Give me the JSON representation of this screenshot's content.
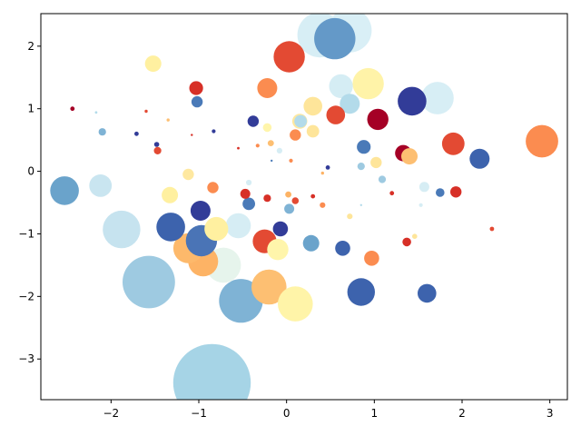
{
  "chart_data": {
    "type": "scatter",
    "title": "",
    "xlabel": "",
    "ylabel": "",
    "xlim": [
      -2.8,
      3.2
    ],
    "ylim": [
      -3.65,
      2.52
    ],
    "x_ticks": [
      -2,
      -1,
      0,
      1,
      2,
      3
    ],
    "y_ticks": [
      -3,
      -2,
      -1,
      0,
      1,
      2
    ],
    "x_tick_labels": [
      "−2",
      "−1",
      "0",
      "1",
      "2",
      "3"
    ],
    "y_tick_labels": [
      "−3",
      "−2",
      "−1",
      "0",
      "1",
      "2"
    ],
    "grid": false,
    "legend": "none",
    "colormap": "RdYlBu",
    "points": [
      {
        "x": -0.85,
        "y": -3.38,
        "size": 0.62,
        "color": "#a6d4e6"
      },
      {
        "x": -1.57,
        "y": -1.77,
        "size": 0.42,
        "color": "#9ecae1"
      },
      {
        "x": -0.52,
        "y": -2.07,
        "size": 0.35,
        "color": "#7fb3d5"
      },
      {
        "x": 0.38,
        "y": 2.18,
        "size": 0.36,
        "color": "#d7eef5"
      },
      {
        "x": 0.72,
        "y": 2.25,
        "size": 0.35,
        "color": "#d9eff6"
      },
      {
        "x": 0.55,
        "y": 2.12,
        "size": 0.33,
        "color": "#6499c8"
      },
      {
        "x": -1.88,
        "y": -0.93,
        "size": 0.3,
        "color": "#c6e3ef"
      },
      {
        "x": -0.72,
        "y": -1.5,
        "size": 0.28,
        "color": "#e6f4ec"
      },
      {
        "x": -0.2,
        "y": -1.85,
        "size": 0.28,
        "color": "#fdbf72"
      },
      {
        "x": 0.1,
        "y": -2.12,
        "size": 0.28,
        "color": "#fff4a8"
      },
      {
        "x": -0.95,
        "y": -1.44,
        "size": 0.24,
        "color": "#fdb365"
      },
      {
        "x": -1.12,
        "y": -1.23,
        "size": 0.24,
        "color": "#fdb96b"
      },
      {
        "x": 2.91,
        "y": 0.48,
        "size": 0.26,
        "color": "#fb8c50"
      },
      {
        "x": 1.72,
        "y": 1.17,
        "size": 0.26,
        "color": "#d7eef5"
      },
      {
        "x": 1.43,
        "y": 1.12,
        "size": 0.23,
        "color": "#323c98"
      },
      {
        "x": 0.03,
        "y": 1.83,
        "size": 0.25,
        "color": "#e34a33"
      },
      {
        "x": 0.93,
        "y": 1.4,
        "size": 0.25,
        "color": "#fff3a8"
      },
      {
        "x": -0.97,
        "y": -1.11,
        "size": 0.25,
        "color": "#4a74b6"
      },
      {
        "x": -1.32,
        "y": -0.89,
        "size": 0.23,
        "color": "#3d63ad"
      },
      {
        "x": -2.53,
        "y": -0.31,
        "size": 0.23,
        "color": "#6aa3cb"
      },
      {
        "x": 0.85,
        "y": -1.93,
        "size": 0.22,
        "color": "#3d63ad"
      },
      {
        "x": -0.55,
        "y": -0.87,
        "size": 0.2,
        "color": "#d6edf4"
      },
      {
        "x": -0.25,
        "y": -1.12,
        "size": 0.19,
        "color": "#e34a33"
      },
      {
        "x": -0.8,
        "y": -0.92,
        "size": 0.19,
        "color": "#fff0a0"
      },
      {
        "x": 0.62,
        "y": 1.36,
        "size": 0.19,
        "color": "#d5edf4"
      },
      {
        "x": -2.12,
        "y": -0.23,
        "size": 0.18,
        "color": "#c9e5f0"
      },
      {
        "x": -0.1,
        "y": -1.25,
        "size": 0.17,
        "color": "#fff5ab"
      },
      {
        "x": 1.04,
        "y": 0.83,
        "size": 0.17,
        "color": "#a50026"
      },
      {
        "x": 1.9,
        "y": 0.44,
        "size": 0.18,
        "color": "#e34a33"
      },
      {
        "x": 2.2,
        "y": 0.2,
        "size": 0.16,
        "color": "#3d63ad"
      },
      {
        "x": -0.98,
        "y": -0.63,
        "size": 0.16,
        "color": "#323c98"
      },
      {
        "x": 0.3,
        "y": 1.04,
        "size": 0.15,
        "color": "#fee59a"
      },
      {
        "x": 0.72,
        "y": 1.08,
        "size": 0.16,
        "color": "#b3dbea"
      },
      {
        "x": -0.22,
        "y": 1.33,
        "size": 0.16,
        "color": "#fb8c50"
      },
      {
        "x": 1.6,
        "y": -1.95,
        "size": 0.15,
        "color": "#3d63ad"
      },
      {
        "x": 0.56,
        "y": 0.9,
        "size": 0.15,
        "color": "#e34a33"
      },
      {
        "x": -1.52,
        "y": 1.72,
        "size": 0.13,
        "color": "#fff0a0"
      },
      {
        "x": -1.33,
        "y": -0.38,
        "size": 0.13,
        "color": "#fff0a0"
      },
      {
        "x": 0.28,
        "y": -1.15,
        "size": 0.13,
        "color": "#6aa3cb"
      },
      {
        "x": 0.64,
        "y": -1.23,
        "size": 0.12,
        "color": "#3d63ad"
      },
      {
        "x": 0.97,
        "y": -1.39,
        "size": 0.12,
        "color": "#fb8c50"
      },
      {
        "x": -0.07,
        "y": -0.92,
        "size": 0.12,
        "color": "#323c98"
      },
      {
        "x": 1.33,
        "y": 0.29,
        "size": 0.13,
        "color": "#a50026"
      },
      {
        "x": 1.4,
        "y": 0.24,
        "size": 0.13,
        "color": "#fdbf72"
      },
      {
        "x": 0.88,
        "y": 0.39,
        "size": 0.11,
        "color": "#4a7ab8"
      },
      {
        "x": 0.15,
        "y": 0.8,
        "size": 0.12,
        "color": "#fee8a0"
      },
      {
        "x": 0.3,
        "y": 0.64,
        "size": 0.1,
        "color": "#fee59a"
      },
      {
        "x": 0.16,
        "y": 0.8,
        "size": 0.1,
        "color": "#b3dbea"
      },
      {
        "x": -1.03,
        "y": 1.33,
        "size": 0.11,
        "color": "#d73027"
      },
      {
        "x": -0.43,
        "y": -0.52,
        "size": 0.1,
        "color": "#4a7ab8"
      },
      {
        "x": -0.84,
        "y": -0.26,
        "size": 0.09,
        "color": "#fb8c50"
      },
      {
        "x": -1.12,
        "y": -0.05,
        "size": 0.09,
        "color": "#fee8a0"
      },
      {
        "x": -1.02,
        "y": 1.11,
        "size": 0.09,
        "color": "#4a7ab8"
      },
      {
        "x": -0.38,
        "y": 0.8,
        "size": 0.09,
        "color": "#323c98"
      },
      {
        "x": 0.1,
        "y": 0.58,
        "size": 0.09,
        "color": "#fb8c50"
      },
      {
        "x": 1.02,
        "y": 0.14,
        "size": 0.09,
        "color": "#fee59a"
      },
      {
        "x": 1.93,
        "y": -0.33,
        "size": 0.09,
        "color": "#d73027"
      },
      {
        "x": -0.47,
        "y": -0.36,
        "size": 0.08,
        "color": "#d73027"
      },
      {
        "x": 0.03,
        "y": -0.6,
        "size": 0.08,
        "color": "#7fb3d5"
      },
      {
        "x": 1.57,
        "y": -0.25,
        "size": 0.08,
        "color": "#d6edf4"
      },
      {
        "x": 1.75,
        "y": -0.34,
        "size": 0.07,
        "color": "#4a7ab8"
      },
      {
        "x": 1.37,
        "y": -1.13,
        "size": 0.07,
        "color": "#d73027"
      },
      {
        "x": -0.22,
        "y": -0.43,
        "size": 0.06,
        "color": "#d73027"
      },
      {
        "x": -0.22,
        "y": 0.7,
        "size": 0.07,
        "color": "#fff5ab"
      },
      {
        "x": 0.85,
        "y": 0.08,
        "size": 0.06,
        "color": "#9ecae1"
      },
      {
        "x": 1.09,
        "y": -0.13,
        "size": 0.06,
        "color": "#9ecae1"
      },
      {
        "x": -2.1,
        "y": 0.63,
        "size": 0.06,
        "color": "#7fb3d5"
      },
      {
        "x": -1.47,
        "y": 0.33,
        "size": 0.06,
        "color": "#e34a33"
      },
      {
        "x": 0.1,
        "y": -0.47,
        "size": 0.055,
        "color": "#e34a33"
      },
      {
        "x": -0.18,
        "y": 0.45,
        "size": 0.05,
        "color": "#fdbf72"
      },
      {
        "x": 0.02,
        "y": -0.37,
        "size": 0.05,
        "color": "#fdb365"
      },
      {
        "x": -0.08,
        "y": 0.33,
        "size": 0.045,
        "color": "#d6edf4"
      },
      {
        "x": 0.41,
        "y": -0.54,
        "size": 0.045,
        "color": "#fb8c50"
      },
      {
        "x": 0.72,
        "y": -0.72,
        "size": 0.045,
        "color": "#fee59a"
      },
      {
        "x": -0.43,
        "y": -0.18,
        "size": 0.045,
        "color": "#d6edf4"
      },
      {
        "x": 1.46,
        "y": -1.04,
        "size": 0.04,
        "color": "#fee59a"
      },
      {
        "x": -1.48,
        "y": 0.43,
        "size": 0.04,
        "color": "#323c98"
      },
      {
        "x": -1.71,
        "y": 0.6,
        "size": 0.035,
        "color": "#323c98"
      },
      {
        "x": 0.47,
        "y": 0.06,
        "size": 0.035,
        "color": "#323c98"
      },
      {
        "x": 1.2,
        "y": -0.35,
        "size": 0.035,
        "color": "#d73027"
      },
      {
        "x": 2.34,
        "y": -0.92,
        "size": 0.035,
        "color": "#e34a33"
      },
      {
        "x": -2.44,
        "y": 1.0,
        "size": 0.035,
        "color": "#a50026"
      },
      {
        "x": 0.3,
        "y": -0.4,
        "size": 0.035,
        "color": "#d73027"
      },
      {
        "x": -0.33,
        "y": 0.41,
        "size": 0.03,
        "color": "#fb8c50"
      },
      {
        "x": 0.05,
        "y": 0.17,
        "size": 0.03,
        "color": "#fb8c50"
      },
      {
        "x": -0.83,
        "y": 0.64,
        "size": 0.03,
        "color": "#323c98"
      },
      {
        "x": 1.53,
        "y": -0.54,
        "size": 0.03,
        "color": "#d6edf4"
      },
      {
        "x": 0.41,
        "y": -0.03,
        "size": 0.025,
        "color": "#fdb365"
      },
      {
        "x": -1.35,
        "y": 0.82,
        "size": 0.025,
        "color": "#fdbf72"
      },
      {
        "x": -1.6,
        "y": 0.96,
        "size": 0.025,
        "color": "#e34a33"
      },
      {
        "x": -2.17,
        "y": 0.94,
        "size": 0.02,
        "color": "#b3dbea"
      },
      {
        "x": -0.55,
        "y": 0.37,
        "size": 0.02,
        "color": "#d73027"
      },
      {
        "x": -0.17,
        "y": 0.17,
        "size": 0.018,
        "color": "#4a7ab8"
      },
      {
        "x": 0.85,
        "y": -0.54,
        "size": 0.015,
        "color": "#b3dbea"
      },
      {
        "x": -1.08,
        "y": 0.58,
        "size": 0.012,
        "color": "#d73027"
      }
    ]
  }
}
